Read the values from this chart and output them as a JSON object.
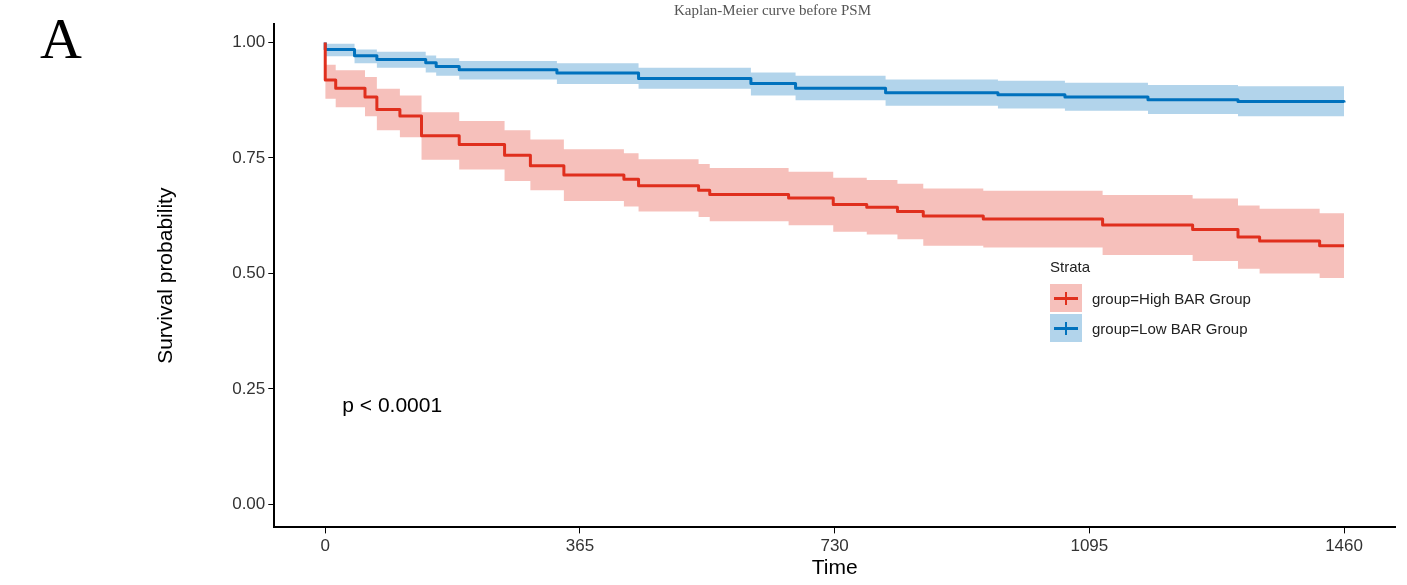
{
  "chart_data": {
    "type": "step",
    "title": "Kaplan-Meier curve before PSM",
    "xlabel": "Time",
    "ylabel": "Survival probability",
    "legend_title": "Strata",
    "legend": "right",
    "grid": false,
    "annotations": [
      "A",
      "p < 0.0001"
    ],
    "xlim": [
      -73,
      1533
    ],
    "xticks": [
      0,
      365,
      730,
      1095,
      1460
    ],
    "ylim": [
      -0.05,
      1.04
    ],
    "yticks": [
      {
        "value": 0,
        "label": "0.00"
      },
      {
        "value": 0.25,
        "label": "0.25"
      },
      {
        "value": 0.5,
        "label": "0.50"
      },
      {
        "value": 0.75,
        "label": "0.75"
      },
      {
        "value": 1,
        "label": "1.00"
      }
    ],
    "series": [
      {
        "name": "group=High BAR Group",
        "color": "#e0301e",
        "x": [
          0,
          0,
          15,
          57,
          74,
          107,
          138,
          192,
          257,
          294,
          342,
          428,
          449,
          535,
          551,
          664,
          728,
          776,
          820,
          857,
          943,
          1114,
          1243,
          1308,
          1339,
          1425,
          1460
        ],
        "values": [
          1.0,
          0.919,
          0.901,
          0.882,
          0.855,
          0.841,
          0.798,
          0.779,
          0.756,
          0.733,
          0.713,
          0.704,
          0.69,
          0.68,
          0.671,
          0.663,
          0.649,
          0.643,
          0.634,
          0.624,
          0.618,
          0.605,
          0.595,
          0.579,
          0.57,
          0.56,
          0.56
        ],
        "lower": [
          1.0,
          0.878,
          0.86,
          0.84,
          0.81,
          0.795,
          0.746,
          0.725,
          0.7,
          0.68,
          0.657,
          0.645,
          0.634,
          0.622,
          0.613,
          0.604,
          0.59,
          0.584,
          0.574,
          0.56,
          0.556,
          0.54,
          0.527,
          0.51,
          0.5,
          0.49,
          0.49
        ],
        "upper": [
          1.0,
          0.952,
          0.94,
          0.925,
          0.9,
          0.885,
          0.849,
          0.83,
          0.81,
          0.79,
          0.769,
          0.76,
          0.747,
          0.737,
          0.728,
          0.72,
          0.707,
          0.702,
          0.694,
          0.684,
          0.679,
          0.67,
          0.662,
          0.647,
          0.64,
          0.63,
          0.63
        ]
      },
      {
        "name": "group=Low BAR Group",
        "color": "#0072bd",
        "x": [
          0,
          0,
          42,
          74,
          144,
          159,
          192,
          332,
          449,
          610,
          674,
          803,
          964,
          1060,
          1179,
          1308,
          1460
        ],
        "values": [
          1.0,
          0.985,
          0.971,
          0.963,
          0.956,
          0.948,
          0.941,
          0.934,
          0.922,
          0.911,
          0.901,
          0.891,
          0.887,
          0.882,
          0.876,
          0.872,
          0.87
        ],
        "lower": [
          1.0,
          0.97,
          0.955,
          0.945,
          0.935,
          0.928,
          0.92,
          0.91,
          0.9,
          0.885,
          0.875,
          0.863,
          0.857,
          0.852,
          0.845,
          0.84,
          0.837
        ],
        "upper": [
          1.0,
          0.997,
          0.985,
          0.98,
          0.972,
          0.966,
          0.96,
          0.955,
          0.945,
          0.935,
          0.928,
          0.92,
          0.917,
          0.913,
          0.908,
          0.905,
          0.904
        ]
      }
    ]
  }
}
